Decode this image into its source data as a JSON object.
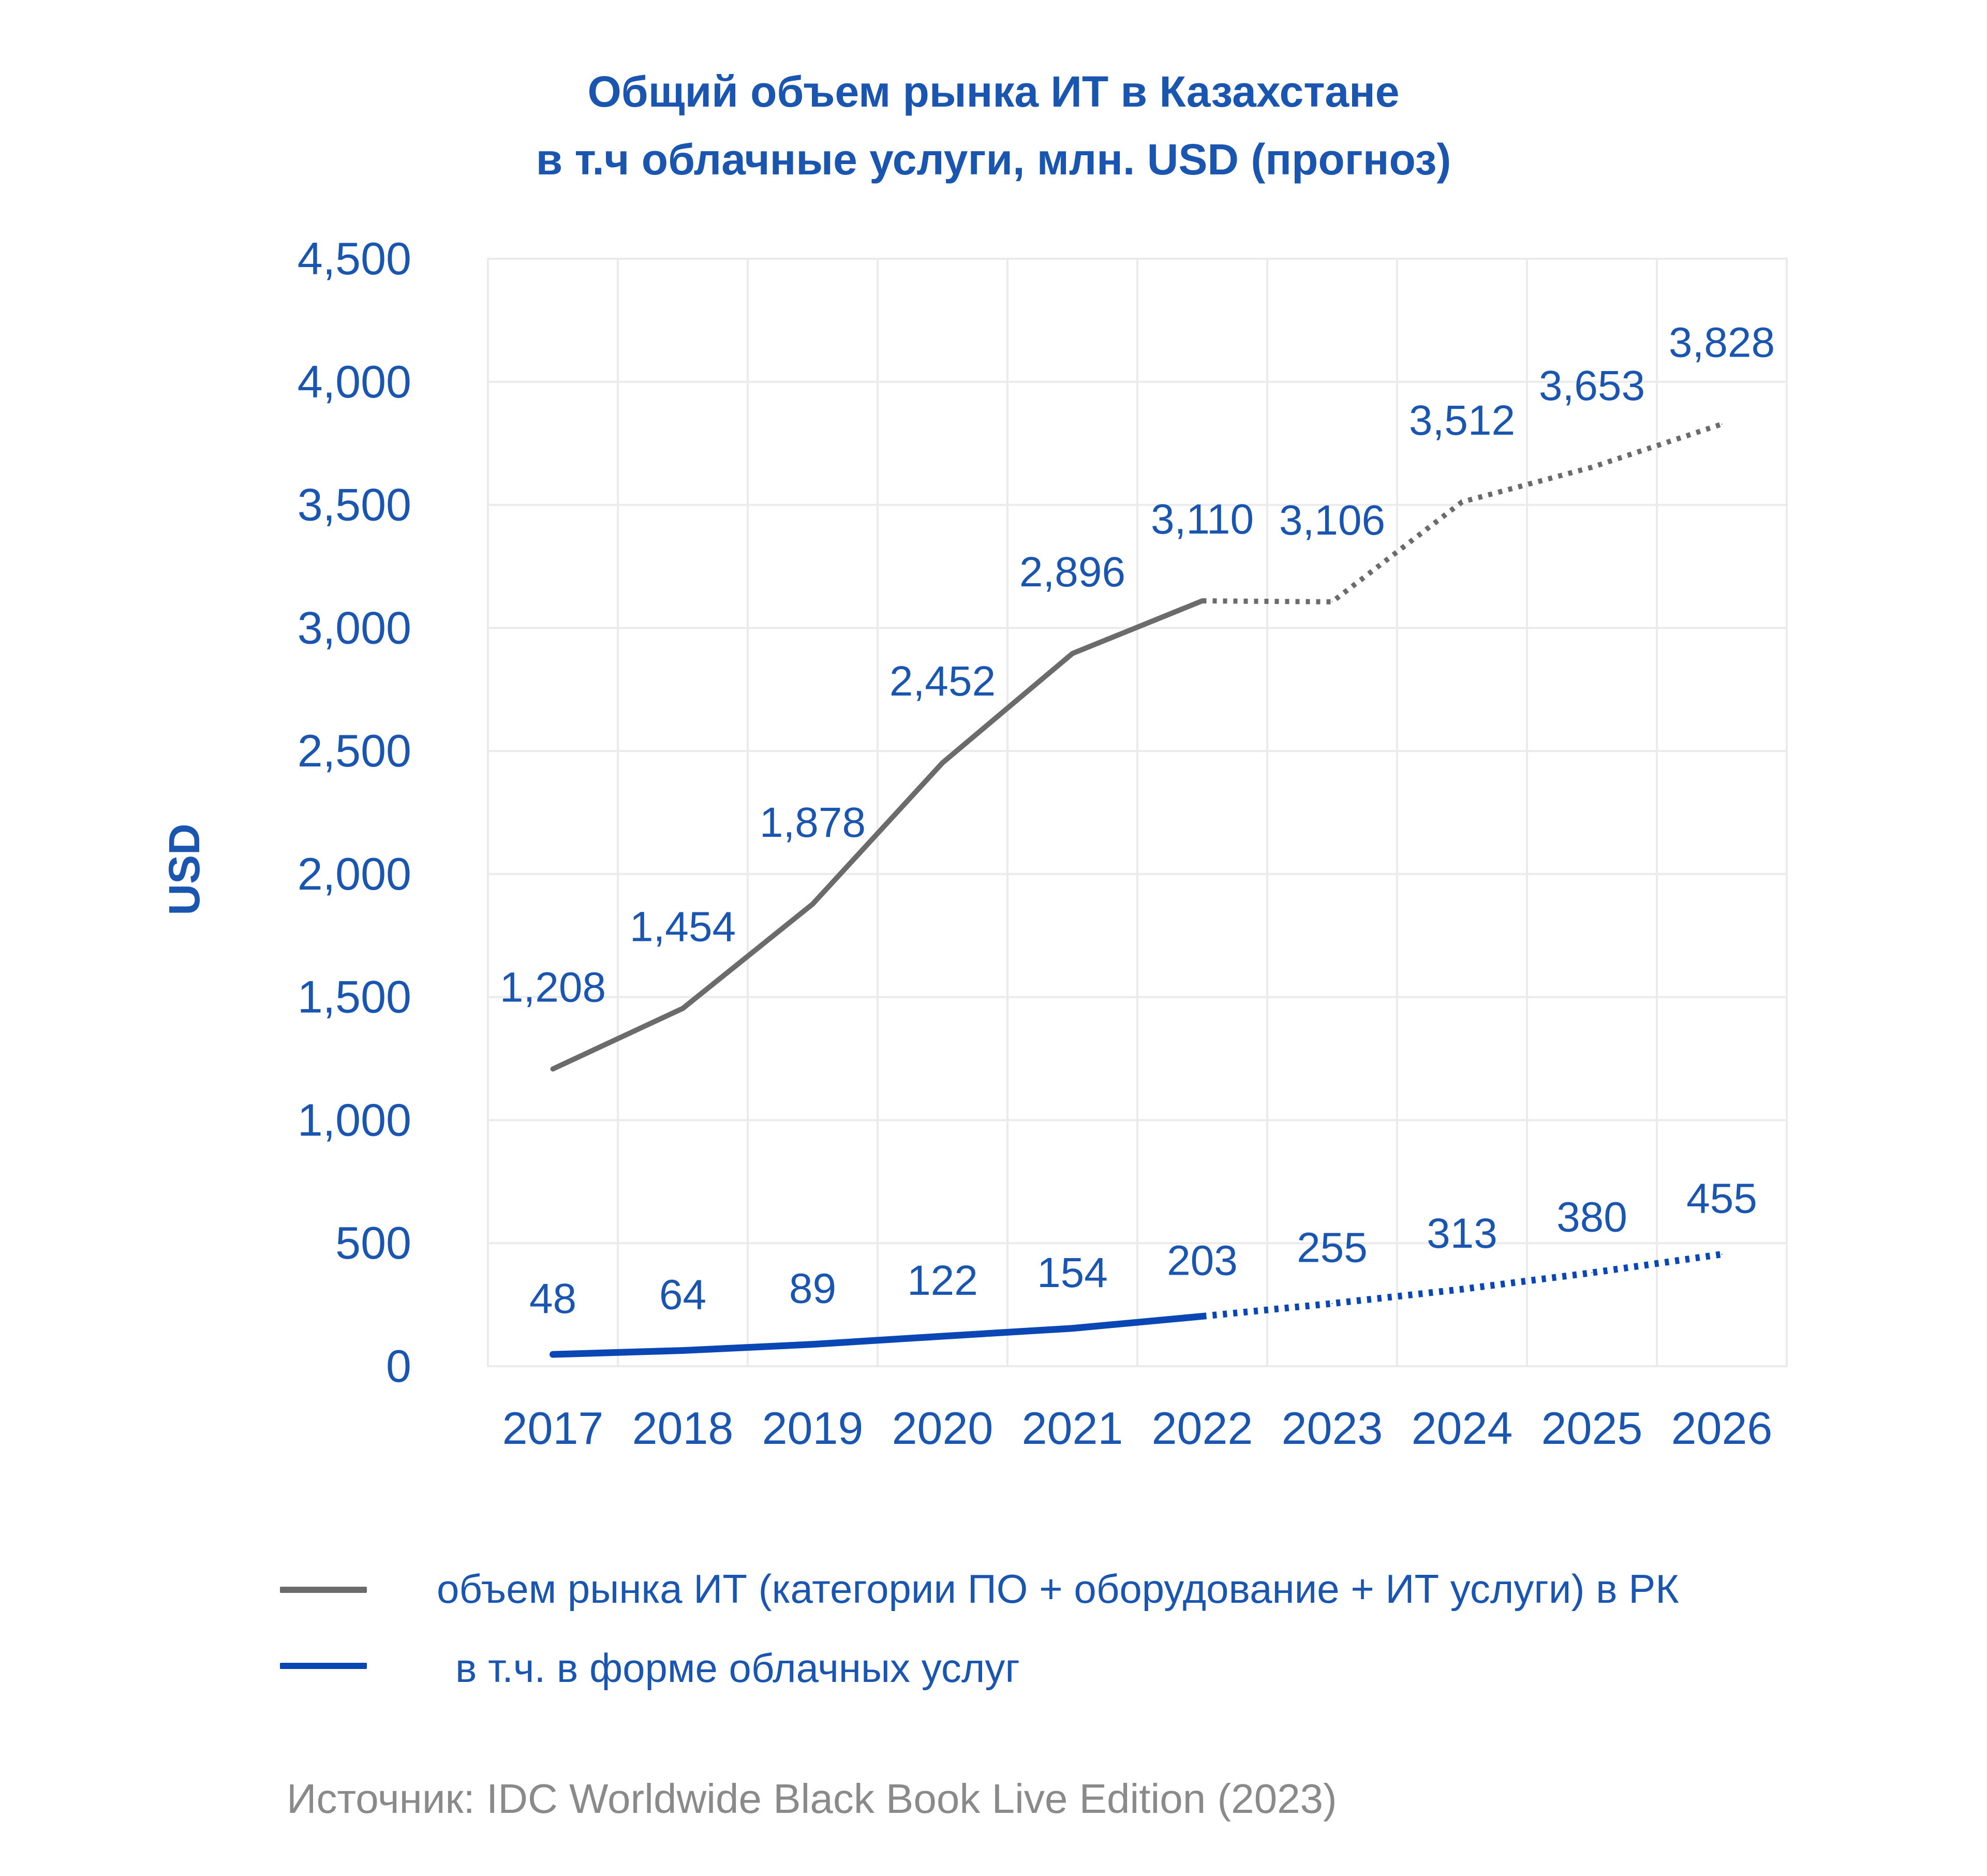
{
  "chart_data": {
    "type": "line",
    "title": [
      "Общий объем рынка ИТ в Казахстане",
      "в т.ч облачные услуги, млн. USD (прогноз)"
    ],
    "ylabel": "USD",
    "xlabel": "",
    "ylim": [
      0,
      4500
    ],
    "yticks": [
      "0",
      "500",
      "1,000",
      "1,500",
      "2,000",
      "2,500",
      "3,000",
      "3,500",
      "4,000",
      "4,500"
    ],
    "ytick_values": [
      0,
      500,
      1000,
      1500,
      2000,
      2500,
      3000,
      3500,
      4000,
      4500
    ],
    "categories": [
      "2017",
      "2018",
      "2019",
      "2020",
      "2021",
      "2022",
      "2023",
      "2024",
      "2025",
      "2026"
    ],
    "grid": true,
    "forecast_from": "2022",
    "series": [
      {
        "name": "объем рынка ИТ (категории ПО + оборудование + ИТ услуги) в РК",
        "color": "#6b6b6b",
        "values": [
          1208,
          1454,
          1878,
          2452,
          2896,
          3110,
          3106,
          3512,
          3653,
          3828
        ],
        "labels": [
          "1,208",
          "1,454",
          "1,878",
          "2,452",
          "2,896",
          "3,110",
          "3,106",
          "3,512",
          "3,653",
          "3,828"
        ]
      },
      {
        "name": "в т.ч. в форме облачных услуг",
        "color": "#0a47b5",
        "values": [
          48,
          64,
          89,
          122,
          154,
          203,
          255,
          313,
          380,
          455
        ],
        "labels": [
          "48",
          "64",
          "89",
          "122",
          "154",
          "203",
          "255",
          "313",
          "380",
          "455"
        ]
      }
    ],
    "legend_position": "bottom",
    "label_color": "#1a56b0"
  },
  "source": "Источник: IDC Worldwide Black Book Live Edition (2023)"
}
